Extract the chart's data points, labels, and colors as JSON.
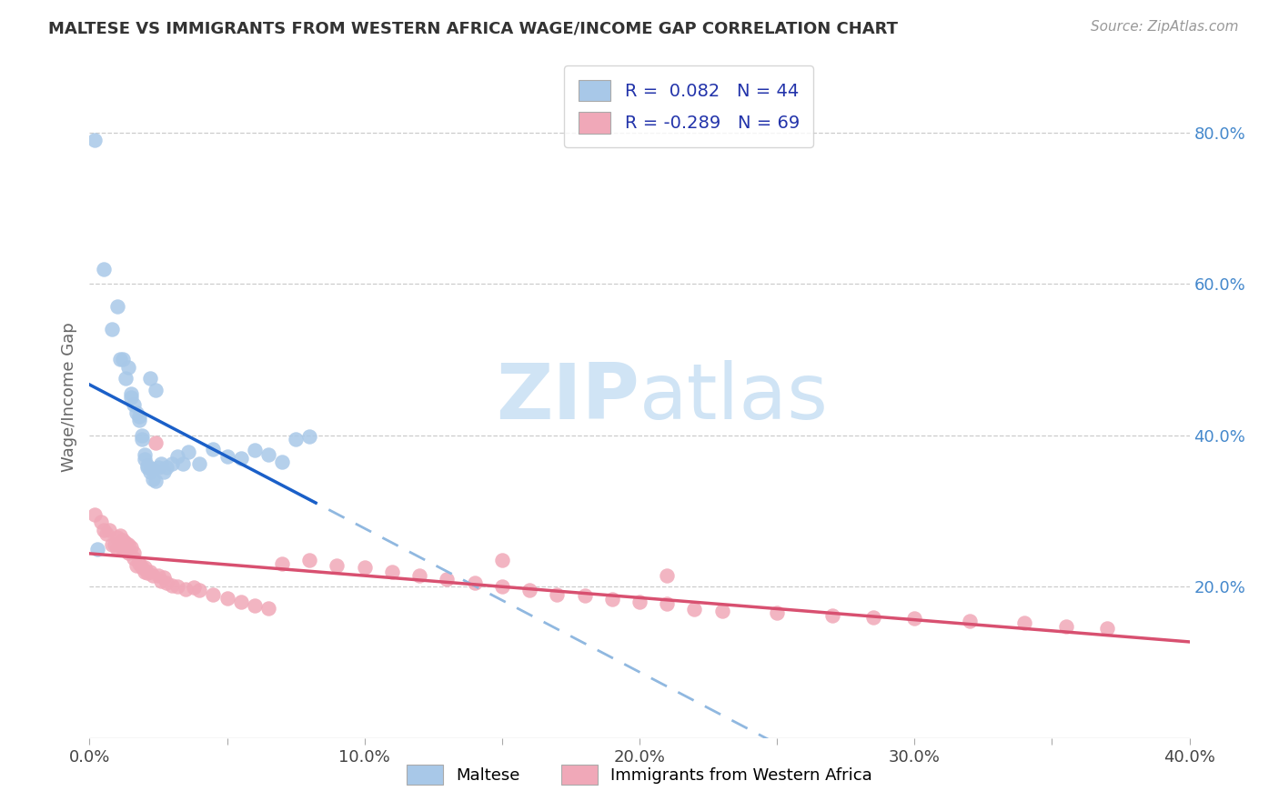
{
  "title": "MALTESE VS IMMIGRANTS FROM WESTERN AFRICA WAGE/INCOME GAP CORRELATION CHART",
  "source": "Source: ZipAtlas.com",
  "ylabel": "Wage/Income Gap",
  "xlim": [
    0.0,
    40.0
  ],
  "ylim": [
    0.0,
    90.0
  ],
  "ytick_vals_right": [
    20.0,
    40.0,
    60.0,
    80.0
  ],
  "ytick_labels_right": [
    "20.0%",
    "40.0%",
    "60.0%",
    "80.0%"
  ],
  "xtick_positions": [
    0.0,
    5.0,
    10.0,
    15.0,
    20.0,
    25.0,
    30.0,
    35.0,
    40.0
  ],
  "xtick_labels": [
    "0.0%",
    "",
    "10.0%",
    "",
    "20.0%",
    "",
    "30.0%",
    "",
    "40.0%"
  ],
  "legend1_label": "Maltese",
  "legend2_label": "Immigrants from Western Africa",
  "r1": "0.082",
  "n1": "44",
  "r2": "-0.289",
  "n2": "69",
  "blue_color": "#a8c8e8",
  "pink_color": "#f0a8b8",
  "line_blue_solid": "#1a5fc8",
  "line_blue_dashed": "#90b8e0",
  "line_pink": "#d85070",
  "watermark_color": "#d0e4f5",
  "blue_x": [
    0.3,
    0.5,
    0.8,
    1.0,
    1.1,
    1.2,
    1.3,
    1.4,
    1.5,
    1.5,
    1.6,
    1.7,
    1.8,
    1.8,
    1.9,
    2.0,
    2.0,
    2.1,
    2.1,
    2.2,
    2.3,
    2.3,
    2.4,
    2.5,
    2.6,
    2.7,
    2.8,
    3.0,
    3.2,
    3.4,
    3.6,
    4.0,
    4.5,
    5.0,
    5.5,
    6.0,
    6.5,
    7.0,
    0.2,
    1.9,
    2.2,
    2.4,
    7.5,
    8.0
  ],
  "blue_y": [
    25.0,
    62.0,
    54.0,
    57.0,
    50.0,
    50.0,
    47.5,
    49.0,
    45.0,
    45.5,
    44.0,
    43.0,
    42.0,
    42.5,
    39.5,
    36.8,
    37.5,
    36.0,
    35.8,
    35.2,
    35.5,
    34.2,
    34.0,
    35.8,
    36.2,
    35.2,
    35.8,
    36.2,
    37.2,
    36.2,
    37.8,
    36.2,
    38.2,
    37.2,
    37.0,
    38.0,
    37.5,
    36.5,
    79.0,
    40.0,
    47.5,
    46.0,
    39.5,
    39.8
  ],
  "pink_x": [
    0.2,
    0.4,
    0.5,
    0.6,
    0.7,
    0.8,
    0.9,
    1.0,
    1.0,
    1.1,
    1.2,
    1.2,
    1.3,
    1.4,
    1.4,
    1.5,
    1.6,
    1.6,
    1.7,
    1.8,
    1.9,
    2.0,
    2.0,
    2.1,
    2.2,
    2.3,
    2.5,
    2.6,
    2.7,
    2.8,
    3.0,
    3.2,
    3.5,
    3.8,
    4.0,
    4.5,
    5.0,
    5.5,
    6.0,
    6.5,
    7.0,
    8.0,
    9.0,
    10.0,
    11.0,
    12.0,
    13.0,
    14.0,
    15.0,
    16.0,
    17.0,
    18.0,
    19.0,
    20.0,
    21.0,
    22.0,
    23.0,
    25.0,
    27.0,
    28.5,
    30.0,
    32.0,
    34.0,
    35.5,
    37.0,
    1.3,
    2.4,
    15.0,
    21.0
  ],
  "pink_y": [
    29.5,
    28.5,
    27.5,
    27.0,
    27.5,
    25.5,
    25.5,
    26.5,
    25.0,
    26.8,
    25.0,
    26.2,
    24.8,
    24.5,
    25.5,
    25.2,
    24.5,
    23.8,
    22.8,
    23.0,
    22.5,
    22.0,
    22.5,
    21.8,
    22.0,
    21.5,
    21.5,
    20.8,
    21.2,
    20.5,
    20.2,
    20.0,
    19.7,
    19.9,
    19.5,
    19.0,
    18.5,
    18.0,
    17.5,
    17.2,
    23.0,
    23.5,
    22.8,
    22.5,
    22.0,
    21.5,
    21.0,
    20.5,
    20.0,
    19.5,
    19.0,
    18.8,
    18.3,
    18.0,
    17.8,
    17.0,
    16.8,
    16.5,
    16.2,
    16.0,
    15.8,
    15.5,
    15.2,
    14.8,
    14.5,
    25.8,
    39.0,
    23.5,
    21.5
  ]
}
